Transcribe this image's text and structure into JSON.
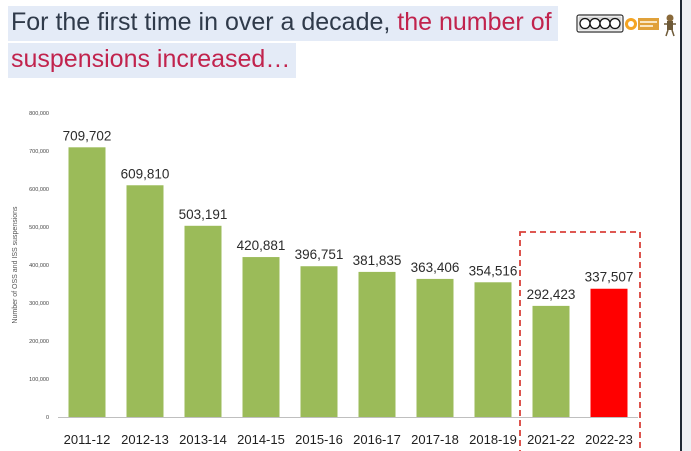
{
  "slide": {
    "title_line1_plain": "For the first time in over a decade",
    "title_line1_comma": ",",
    "title_line1_accent": " the number of",
    "title_line2_accent": "suspensions increased…",
    "logos": {
      "cc_badge": "cc-by-nc-sa-badge",
      "center_logo": "ucla-center-logo",
      "mascot": "mascot-figure"
    }
  },
  "chart_data": {
    "type": "bar",
    "title": "",
    "xlabel": "",
    "ylabel": "Number of OSS and ISS suspensions",
    "categories": [
      "2011-12",
      "2012-13",
      "2013-14",
      "2014-15",
      "2015-16",
      "2016-17",
      "2017-18",
      "2018-19",
      "2021-22",
      "2022-23"
    ],
    "values": [
      709702,
      609810,
      503191,
      420881,
      396751,
      381835,
      363406,
      354516,
      292423,
      337507
    ],
    "value_labels": [
      "709,702",
      "609,810",
      "503,191",
      "420,881",
      "396,751",
      "381,835",
      "363,406",
      "354,516",
      "292,423",
      "337,507"
    ],
    "ylim": [
      0,
      800000
    ],
    "yticks": [
      0,
      100000,
      200000,
      300000,
      400000,
      500000,
      600000,
      700000,
      800000
    ],
    "ytick_labels": [
      "0",
      "100,000",
      "200,000",
      "300,000",
      "400,000",
      "500,000",
      "600,000",
      "700,000",
      "800,000"
    ],
    "grid": false,
    "bar_colors": [
      "#9bbb59",
      "#9bbb59",
      "#9bbb59",
      "#9bbb59",
      "#9bbb59",
      "#9bbb59",
      "#9bbb59",
      "#9bbb59",
      "#9bbb59",
      "#ff0000"
    ],
    "highlight_box_categories": [
      "2021-22",
      "2022-23"
    ],
    "highlight_box_color": "#d9413a"
  }
}
